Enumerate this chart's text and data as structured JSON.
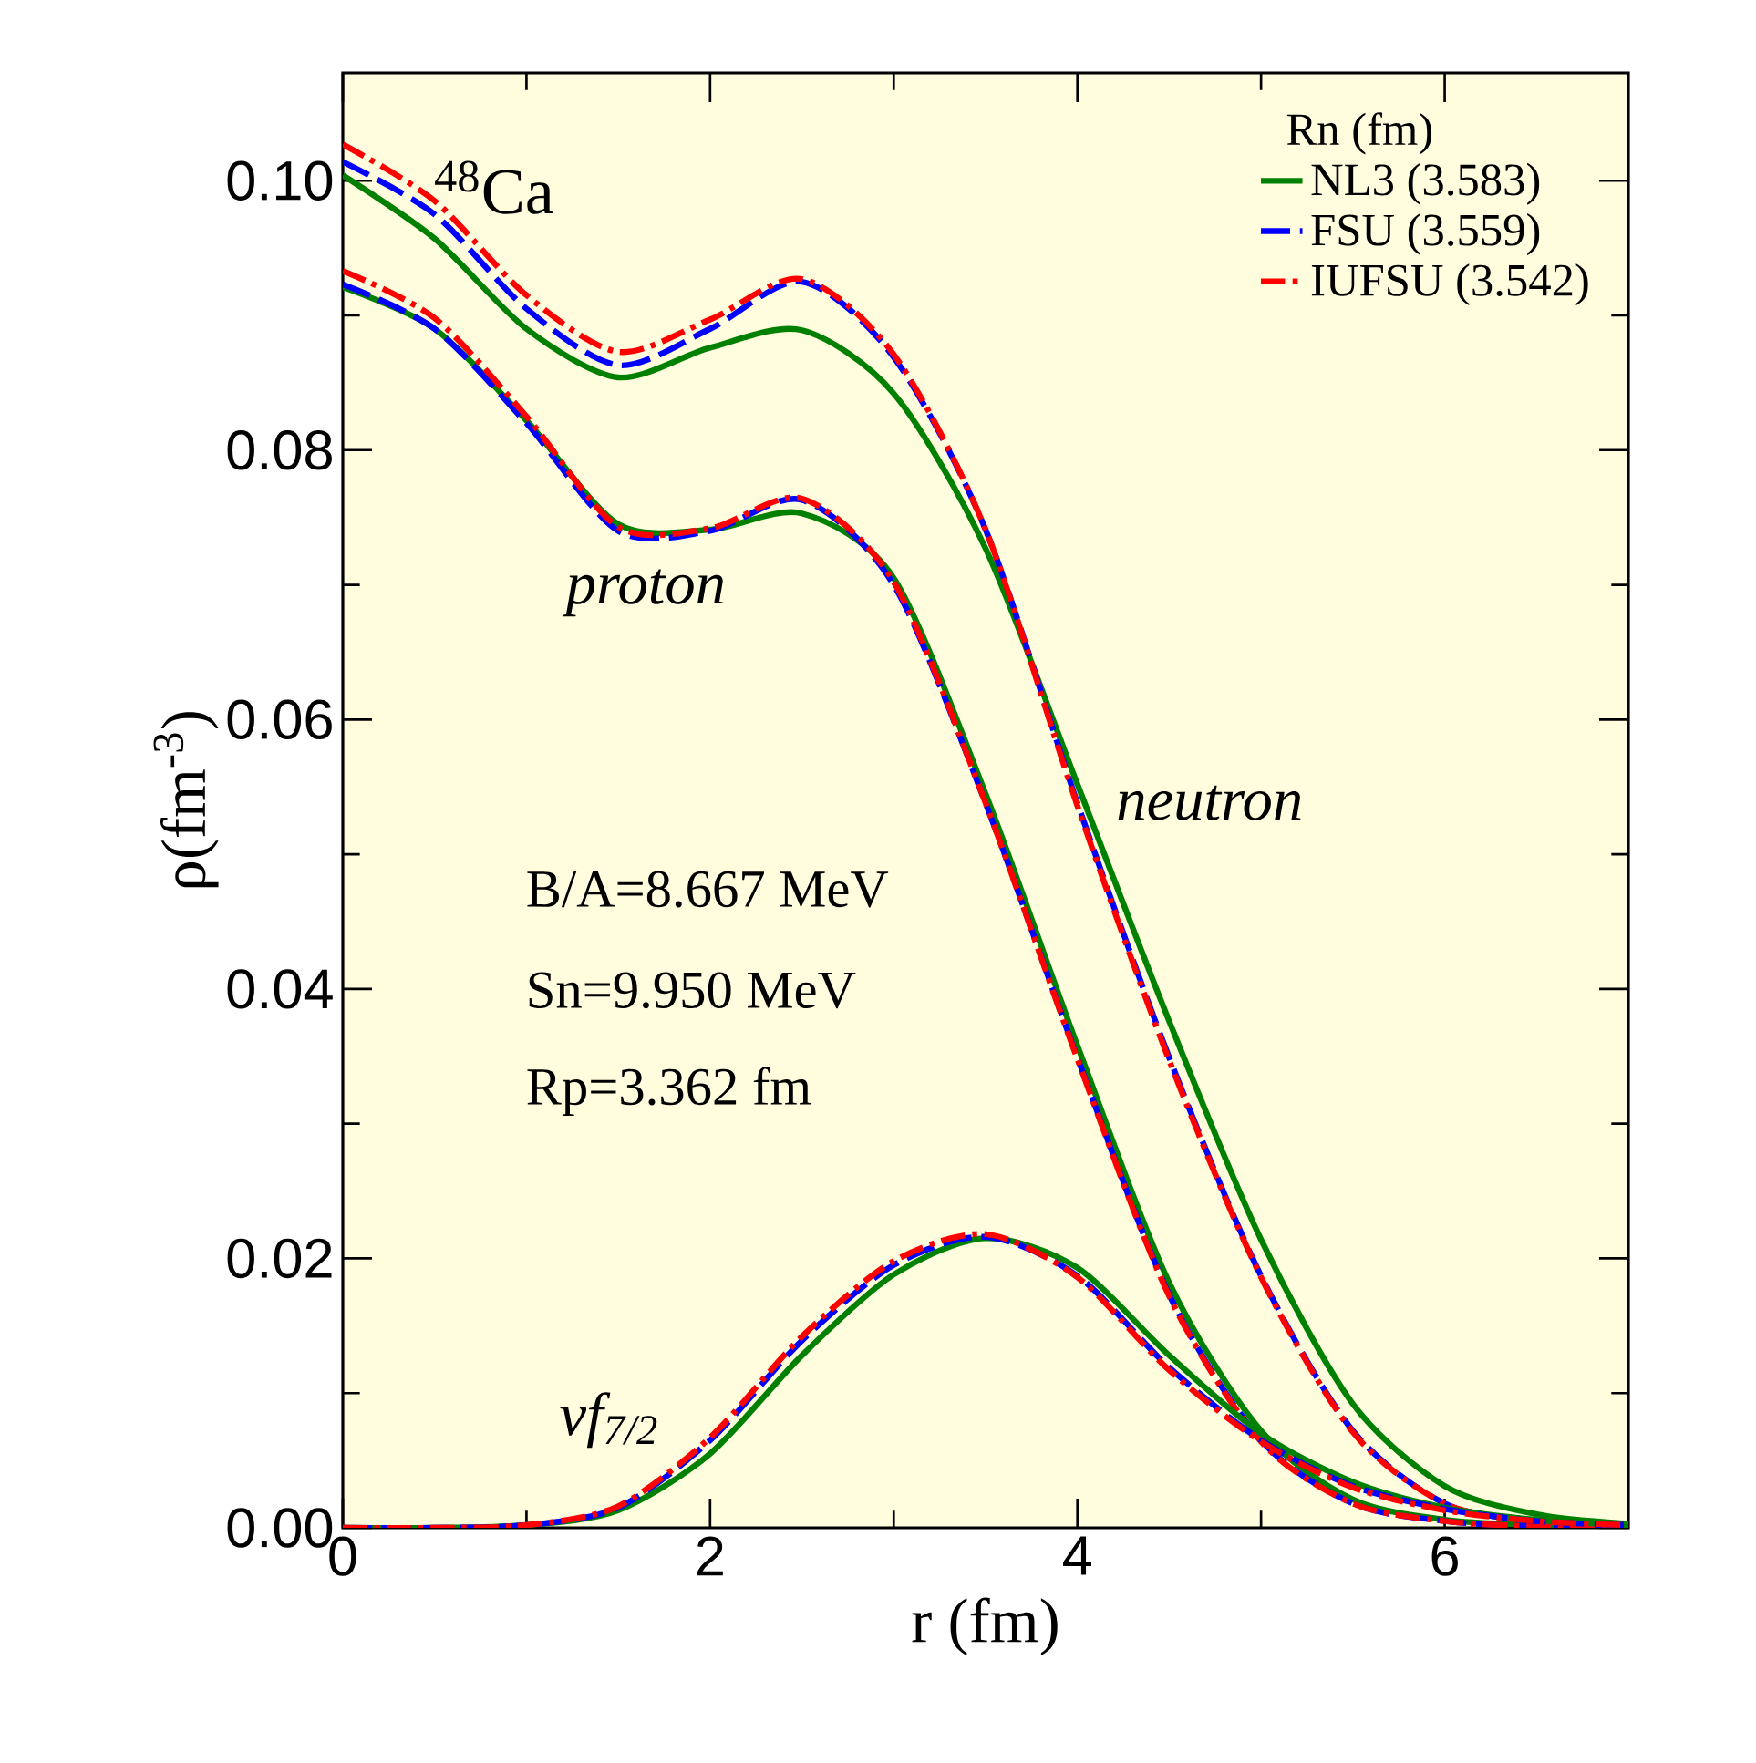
{
  "chart_data": {
    "type": "line",
    "xlabel": "r (fm)",
    "ylabel": "ρ(fm$^{-3}$)",
    "legend_title": "Rn (fm)",
    "legend": "top right",
    "xlim": [
      0,
      7
    ],
    "xticks": [
      0,
      2,
      4,
      6
    ],
    "ylim": [
      0,
      0.108
    ],
    "yticks": [
      {
        "value": 0,
        "label": "0.00"
      },
      {
        "value": 0.02,
        "label": "0.02"
      },
      {
        "value": 0.04,
        "label": "0.04"
      },
      {
        "value": 0.06,
        "label": "0.06"
      },
      {
        "value": 0.08,
        "label": "0.08"
      },
      {
        "value": 0.1,
        "label": "0.10"
      }
    ],
    "x": [
      0,
      0.5,
      1,
      1.5,
      2,
      2.5,
      3,
      3.5,
      4,
      4.5,
      5,
      5.5,
      6,
      6.5,
      7
    ],
    "series": [
      {
        "name": "NL3 (3.583)",
        "color": "#008000",
        "line_style": "solid",
        "values": [
          0.1004,
          0.0957,
          0.089,
          0.0854,
          0.0876,
          0.0889,
          0.0842,
          0.0727,
          0.0552,
          0.0376,
          0.0214,
          0.0092,
          0.0031,
          0.001,
          0.0003
        ]
      },
      {
        "name": "FSU (3.559)",
        "color": "#0000ff",
        "line_style": "dashed",
        "values": [
          0.1014,
          0.0975,
          0.0905,
          0.0863,
          0.089,
          0.0925,
          0.0869,
          0.0741,
          0.0538,
          0.0349,
          0.0187,
          0.0072,
          0.0018,
          0.0005,
          0.0001
        ]
      },
      {
        "name": "IUFSU (3.542)",
        "color": "#ff0000",
        "line_style": "dashdot",
        "values": [
          0.1027,
          0.0985,
          0.0915,
          0.0873,
          0.0897,
          0.0927,
          0.0871,
          0.0741,
          0.0536,
          0.0347,
          0.0186,
          0.0071,
          0.0018,
          0.0005,
          0.0001
        ]
      },
      {
        "color": "#008000",
        "line_style": "solid",
        "values": [
          0.0921,
          0.089,
          0.0822,
          0.0745,
          0.0741,
          0.0753,
          0.0705,
          0.0545,
          0.0358,
          0.0182,
          0.0072,
          0.0021,
          0.0006,
          0.0002,
          0.0
        ]
      },
      {
        "color": "#0000ff",
        "line_style": "dashed",
        "values": [
          0.0923,
          0.089,
          0.082,
          0.074,
          0.074,
          0.0763,
          0.07,
          0.0538,
          0.0349,
          0.0173,
          0.0065,
          0.0018,
          0.0005,
          0.0001,
          0.0
        ]
      },
      {
        "color": "#ff0000",
        "line_style": "dashdot",
        "values": [
          0.0933,
          0.0898,
          0.0825,
          0.0743,
          0.0742,
          0.0764,
          0.0702,
          0.0538,
          0.0348,
          0.0172,
          0.0064,
          0.0018,
          0.0005,
          0.0001,
          0.0
        ]
      },
      {
        "color": "#008000",
        "line_style": "solid",
        "values": [
          0,
          0,
          0.0002,
          0.0013,
          0.0055,
          0.0128,
          0.0188,
          0.0215,
          0.0193,
          0.0128,
          0.007,
          0.0034,
          0.0015,
          0.0006,
          0.0002
        ]
      },
      {
        "color": "#0000ff",
        "line_style": "dashed",
        "values": [
          0,
          0,
          0.0002,
          0.0015,
          0.0065,
          0.0139,
          0.0195,
          0.0216,
          0.0187,
          0.0119,
          0.0065,
          0.0031,
          0.0014,
          0.0005,
          0.0002
        ]
      },
      {
        "color": "#ff0000",
        "line_style": "dashdot",
        "values": [
          0,
          0,
          0.0002,
          0.0016,
          0.0067,
          0.0142,
          0.0198,
          0.0218,
          0.0186,
          0.0117,
          0.0064,
          0.003,
          0.0013,
          0.0005,
          0.0002
        ]
      }
    ],
    "annotations": [
      "$^{48}$Ca",
      "B/A=8.667 MeV",
      "Sn=9.950 MeV",
      "Rp=3.362 fm",
      "proton",
      "neutron",
      "νf$_{7/2}$"
    ]
  }
}
